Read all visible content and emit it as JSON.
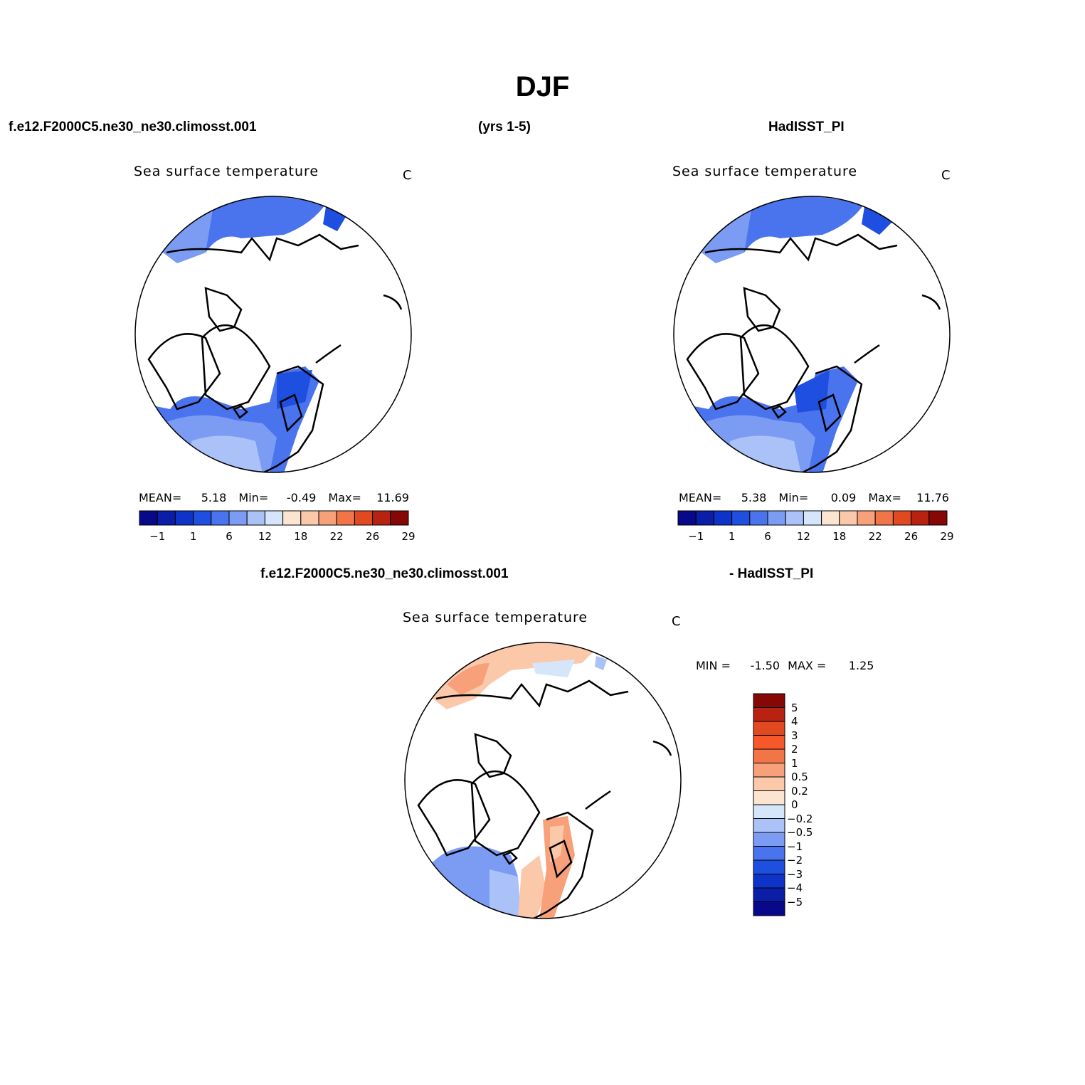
{
  "title": "DJF",
  "header": {
    "left": "f.e12.F2000C5.ne30_ne30.climosst.001",
    "center": "(yrs 1-5)",
    "right": "HadISST_PI"
  },
  "panels": [
    {
      "name": "model",
      "title": "Sea surface temperature",
      "units": "C",
      "stats": {
        "mean_label": "MEAN=",
        "mean": "5.18",
        "min_label": "Min=",
        "min": "-0.49",
        "max_label": "Max=",
        "max": "11.69"
      }
    },
    {
      "name": "obs",
      "title": "Sea surface temperature",
      "units": "C",
      "stats": {
        "mean_label": "MEAN=",
        "mean": "5.38",
        "min_label": "Min=",
        "min": "0.09",
        "max_label": "Max=",
        "max": "11.76"
      }
    }
  ],
  "colorbar_abs": {
    "colors": [
      "#08088a",
      "#0a1ea8",
      "#0d33c9",
      "#1f4fe0",
      "#4a73ee",
      "#7c9cf3",
      "#aac2f8",
      "#d5e6fb",
      "#fce5d0",
      "#fbc8aa",
      "#f7a07a",
      "#f17547",
      "#e14a1e",
      "#b82210",
      "#850806"
    ],
    "ticks": [
      "-1",
      "1",
      "6",
      "12",
      "18",
      "22",
      "26",
      "29"
    ]
  },
  "diff": {
    "label_left": "f.e12.F2000C5.ne30_ne30.climosst.001",
    "label_right": "- HadISST_PI",
    "title": "Sea surface temperature",
    "units": "C",
    "minmax": {
      "min_label": "MIN =",
      "min": "-1.50",
      "max_label": "MAX =",
      "max": "1.25"
    },
    "colorbar": {
      "colors": [
        "#850806",
        "#b82210",
        "#e14a1e",
        "#f7582a",
        "#f17547",
        "#f7a07a",
        "#fbc8aa",
        "#fce5d0",
        "#d5e6fb",
        "#aac2f8",
        "#7c9cf3",
        "#4a73ee",
        "#1f4fe0",
        "#0d33c9",
        "#0a1ea8",
        "#08088a"
      ],
      "ticks": [
        "5",
        "4",
        "3",
        "2",
        "1",
        "0.5",
        "0.2",
        "0",
        "-0.2",
        "-0.5",
        "-1",
        "-2",
        "-3",
        "-4",
        "-5"
      ]
    }
  }
}
